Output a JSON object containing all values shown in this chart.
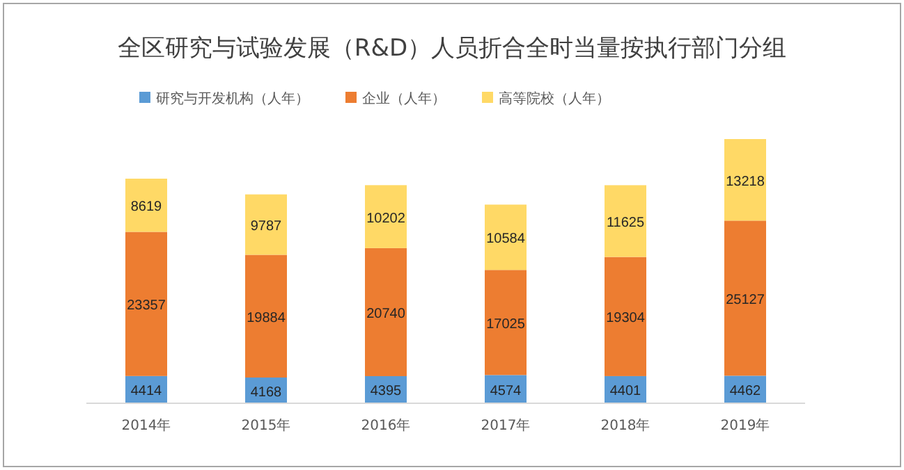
{
  "chart_data": {
    "type": "bar",
    "stacked": true,
    "title": "全区研究与试验发展（R&D）人员折合全时当量按执行部门分组",
    "categories": [
      "2014年",
      "2015年",
      "2016年",
      "2017年",
      "2018年",
      "2019年"
    ],
    "series": [
      {
        "name": "研究与开发机构（人年）",
        "color": "#5b9bd5",
        "values": [
          4414,
          4168,
          4395,
          4574,
          4401,
          4462
        ]
      },
      {
        "name": "企业（人年）",
        "color": "#ed7d31",
        "values": [
          23357,
          19884,
          20740,
          17025,
          19304,
          25127
        ]
      },
      {
        "name": "高等院校（人年）",
        "color": "#ffd966",
        "values": [
          8619,
          9787,
          10202,
          10584,
          11625,
          13218
        ]
      }
    ],
    "data_labels": true,
    "legend": "top"
  }
}
